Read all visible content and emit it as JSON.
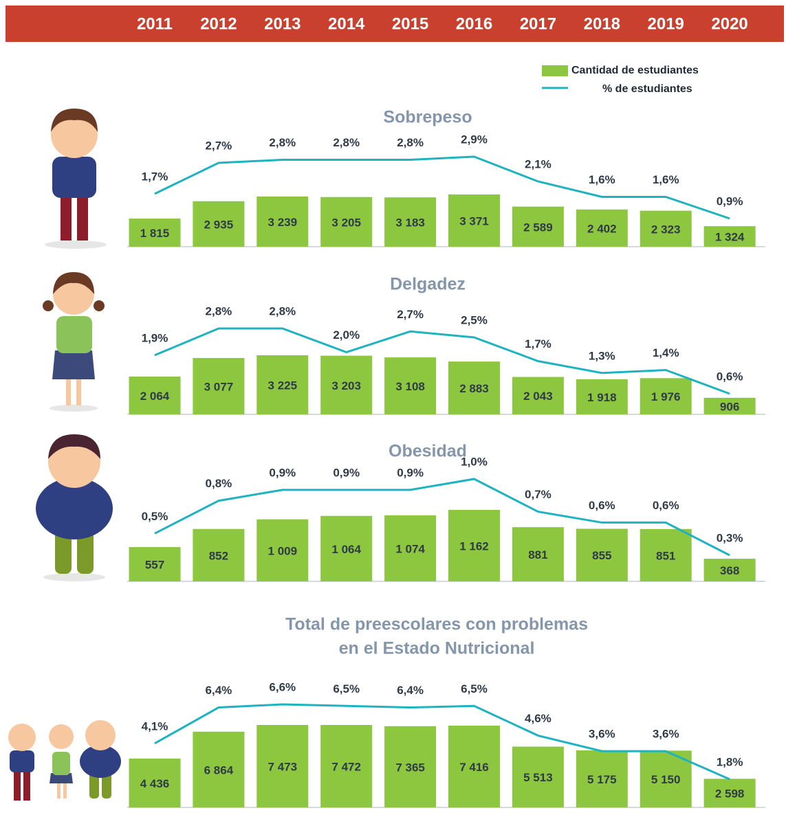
{
  "years": [
    "2011",
    "2012",
    "2013",
    "2014",
    "2015",
    "2016",
    "2017",
    "2018",
    "2019",
    "2020"
  ],
  "legend": [
    {
      "name": "Cantidad de estudiantes",
      "color": "#8dc63f"
    },
    {
      "name": "% de estudiantes",
      "color": "#1db3c0"
    }
  ],
  "chart_data": [
    {
      "type": "bar-line",
      "title": "Sobrepeso",
      "series": [
        {
          "color": "#8dc63f",
          "values": [
            1815,
            2935,
            3239,
            3205,
            3183,
            3371,
            2589,
            2402,
            2323,
            1324
          ],
          "value_labels": [
            "1 815",
            "2 935",
            "3 239",
            "3 205",
            "3 183",
            "3 371",
            "2 589",
            "2 402",
            "2 323",
            "1 324"
          ]
        },
        {
          "color": "#1db3c0",
          "values": [
            1.7,
            2.7,
            2.8,
            2.8,
            2.8,
            2.9,
            2.1,
            1.6,
            1.6,
            0.9
          ],
          "value_labels": [
            "1,7%",
            "2,7%",
            "2,8%",
            "2,8%",
            "2,8%",
            "2,9%",
            "2,1%",
            "1,6%",
            "1,6%",
            "0,9%"
          ]
        }
      ]
    },
    {
      "type": "bar-line",
      "title": "Delgadez",
      "series": [
        {
          "color": "#8dc63f",
          "values": [
            2064,
            3077,
            3225,
            3203,
            3108,
            2883,
            2043,
            1918,
            1976,
            906
          ],
          "value_labels": [
            "2 064",
            "3 077",
            "3 225",
            "3 203",
            "3 108",
            "2 883",
            "2 043",
            "1 918",
            "1 976",
            "906"
          ]
        },
        {
          "color": "#1db3c0",
          "values": [
            1.9,
            2.8,
            2.8,
            2.0,
            2.7,
            2.5,
            1.7,
            1.3,
            1.4,
            0.6
          ],
          "value_labels": [
            "1,9%",
            "2,8%",
            "2,8%",
            "2,0%",
            "2,7%",
            "2,5%",
            "1,7%",
            "1,3%",
            "1,4%",
            "0,6%"
          ]
        }
      ]
    },
    {
      "type": "bar-line",
      "title": "Obesidad",
      "series": [
        {
          "color": "#8dc63f",
          "values": [
            557,
            852,
            1009,
            1064,
            1074,
            1162,
            881,
            855,
            851,
            368
          ],
          "value_labels": [
            "557",
            "852",
            "1 009",
            "1 064",
            "1 074",
            "1 162",
            "881",
            "855",
            "851",
            "368"
          ]
        },
        {
          "color": "#1db3c0",
          "values": [
            0.5,
            0.8,
            0.9,
            0.9,
            0.9,
            1.0,
            0.7,
            0.6,
            0.6,
            0.3
          ],
          "value_labels": [
            "0,5%",
            "0,8%",
            "0,9%",
            "0,9%",
            "0,9%",
            "1,0%",
            "0,7%",
            "0,6%",
            "0,6%",
            "0,3%"
          ]
        }
      ]
    },
    {
      "type": "bar-line",
      "title": [
        "Total de preescolares con problemas",
        "en el Estado Nutricional"
      ],
      "series": [
        {
          "color": "#8dc63f",
          "values": [
            4436,
            6864,
            7473,
            7472,
            7365,
            7416,
            5513,
            5175,
            5150,
            2598
          ],
          "value_labels": [
            "4 436",
            "6 864",
            "7 473",
            "7 472",
            "7 365",
            "7 416",
            "5 513",
            "5 175",
            "5 150",
            "2 598"
          ]
        },
        {
          "color": "#1db3c0",
          "values": [
            4.1,
            6.4,
            6.6,
            6.5,
            6.4,
            6.5,
            4.6,
            3.6,
            3.6,
            1.8
          ],
          "value_labels": [
            "4,1%",
            "6,4%",
            "6,6%",
            "6,5%",
            "6,4%",
            "6,5%",
            "4,6%",
            "3,6%",
            "3,6%",
            "1,8%"
          ]
        }
      ]
    }
  ]
}
